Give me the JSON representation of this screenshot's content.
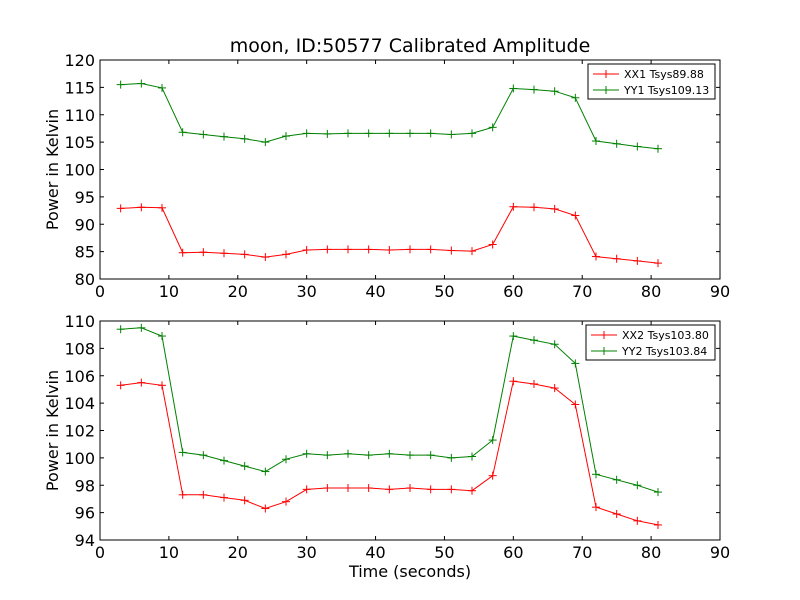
{
  "chart_data": [
    {
      "type": "line",
      "title": "moon, ID:50577 Calibrated Amplitude",
      "xlabel": "",
      "ylabel": "Power in Kelvin",
      "xlim": [
        0,
        90
      ],
      "ylim": [
        80,
        120
      ],
      "xticks": [
        0,
        10,
        20,
        30,
        40,
        50,
        60,
        70,
        80,
        90
      ],
      "yticks": [
        80,
        85,
        90,
        95,
        100,
        105,
        110,
        115,
        120
      ],
      "grid": false,
      "legend": "top-right",
      "x": [
        3,
        6,
        9,
        12,
        15,
        18,
        21,
        24,
        27,
        30,
        33,
        36,
        39,
        42,
        45,
        48,
        51,
        54,
        57,
        60,
        63,
        66,
        69,
        72,
        75,
        78,
        81
      ],
      "series": [
        {
          "name": "XX1 Tsys89.88",
          "color": "#ff0000",
          "values": [
            92.9,
            93.1,
            93.0,
            84.8,
            84.9,
            84.7,
            84.5,
            84.0,
            84.5,
            85.3,
            85.4,
            85.4,
            85.4,
            85.3,
            85.4,
            85.4,
            85.2,
            85.1,
            86.3,
            93.2,
            93.1,
            92.8,
            91.6,
            84.1,
            83.7,
            83.3,
            82.9
          ]
        },
        {
          "name": "YY1 Tsys109.13",
          "color": "#008000",
          "values": [
            115.5,
            115.7,
            114.9,
            106.8,
            106.4,
            106.0,
            105.6,
            105.0,
            106.1,
            106.6,
            106.5,
            106.6,
            106.6,
            106.6,
            106.6,
            106.6,
            106.4,
            106.6,
            107.7,
            114.8,
            114.6,
            114.3,
            113.1,
            105.2,
            104.7,
            104.2,
            103.8
          ]
        }
      ]
    },
    {
      "type": "line",
      "title": "",
      "xlabel": "Time (seconds)",
      "ylabel": "Power in Kelvin",
      "xlim": [
        0,
        90
      ],
      "ylim": [
        94,
        110
      ],
      "xticks": [
        0,
        10,
        20,
        30,
        40,
        50,
        60,
        70,
        80,
        90
      ],
      "yticks": [
        94,
        96,
        98,
        100,
        102,
        104,
        106,
        108,
        110
      ],
      "grid": false,
      "legend": "top-right",
      "x": [
        3,
        6,
        9,
        12,
        15,
        18,
        21,
        24,
        27,
        30,
        33,
        36,
        39,
        42,
        45,
        48,
        51,
        54,
        57,
        60,
        63,
        66,
        69,
        72,
        75,
        78,
        81
      ],
      "series": [
        {
          "name": "XX2 Tsys103.80",
          "color": "#ff0000",
          "values": [
            105.3,
            105.5,
            105.3,
            97.3,
            97.3,
            97.1,
            96.9,
            96.3,
            96.8,
            97.7,
            97.8,
            97.8,
            97.8,
            97.7,
            97.8,
            97.7,
            97.7,
            97.6,
            98.7,
            105.6,
            105.4,
            105.1,
            103.9,
            96.4,
            95.9,
            95.4,
            95.1
          ]
        },
        {
          "name": "YY2 Tsys103.84",
          "color": "#008000",
          "values": [
            109.4,
            109.5,
            108.9,
            100.4,
            100.2,
            99.8,
            99.4,
            99.0,
            99.9,
            100.3,
            100.2,
            100.3,
            100.2,
            100.3,
            100.2,
            100.2,
            100.0,
            100.1,
            101.3,
            108.9,
            108.6,
            108.3,
            106.9,
            98.8,
            98.4,
            98.0,
            97.5
          ]
        }
      ]
    }
  ]
}
